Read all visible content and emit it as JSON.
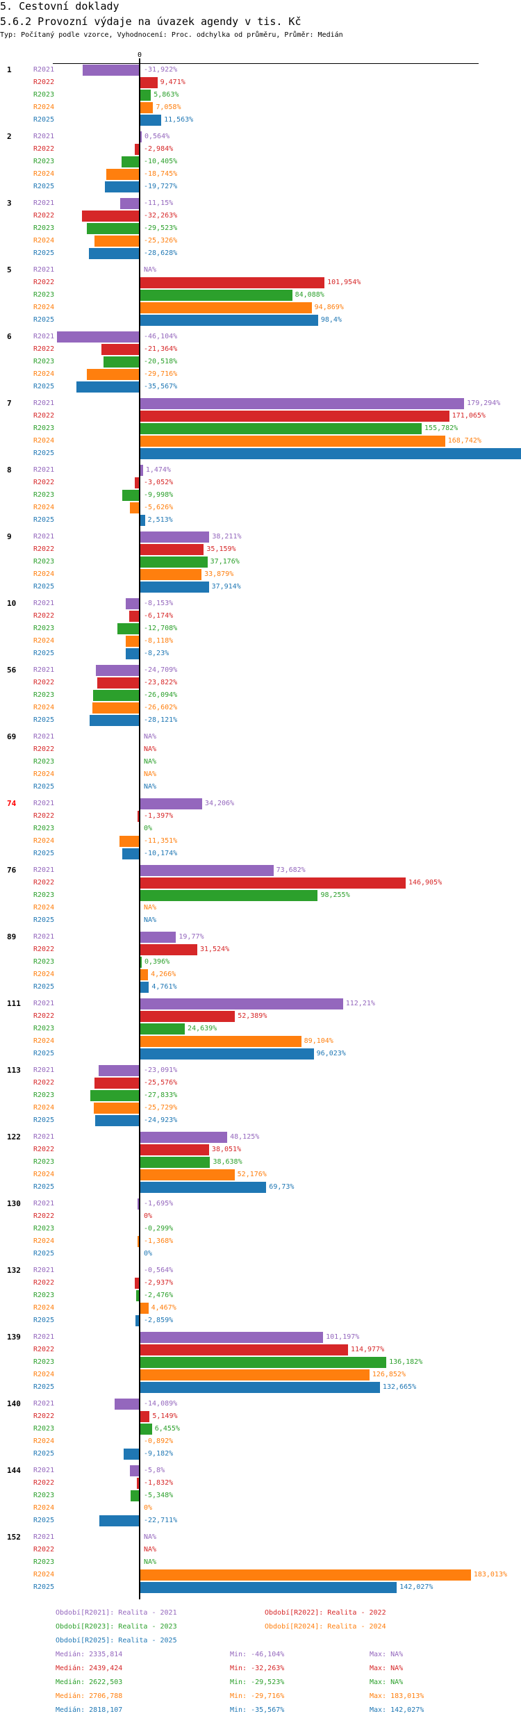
{
  "header": {
    "title": "5. Cestovní doklady",
    "subtitle": "5.6.2 Provozní výdaje na úvazek agendy v tis. Kč",
    "meta": "Typ: Počítaný podle vzorce, Vyhodnocení: Proc. odchylka od průměru, Průměr: Medián"
  },
  "chart_data": {
    "type": "bar",
    "orientation": "horizontal",
    "unit": "%",
    "zero_label": "0",
    "series": [
      {
        "key": "R2021",
        "color": "#9467bd"
      },
      {
        "key": "R2022",
        "color": "#d62728"
      },
      {
        "key": "R2023",
        "color": "#2ca02c"
      },
      {
        "key": "R2024",
        "color": "#ff7f0e"
      },
      {
        "key": "R2025",
        "color": "#1f77b4"
      }
    ],
    "groups": [
      {
        "name": "1",
        "values": [
          -31.922,
          9.471,
          5.863,
          7.058,
          11.563
        ],
        "labels": [
          "-31,922%",
          "9,471%",
          "5,863%",
          "7,058%",
          "11,563%"
        ]
      },
      {
        "name": "2",
        "values": [
          0.564,
          -2.984,
          -10.405,
          -18.745,
          -19.727
        ],
        "labels": [
          "0,564%",
          "-2,984%",
          "-10,405%",
          "-18,745%",
          "-19,727%"
        ]
      },
      {
        "name": "3",
        "values": [
          -11.15,
          -32.263,
          -29.523,
          -25.326,
          -28.628
        ],
        "labels": [
          "-11,15%",
          "-32,263%",
          "-29,523%",
          "-25,326%",
          "-28,628%"
        ]
      },
      {
        "name": "5",
        "values": [
          null,
          101.954,
          84.088,
          94.869,
          98.4
        ],
        "labels": [
          "NA%",
          "101,954%",
          "84,088%",
          "94,869%",
          "98,4%"
        ]
      },
      {
        "name": "6",
        "values": [
          -46.104,
          -21.364,
          -20.518,
          -29.716,
          -35.567
        ],
        "labels": [
          "-46,104%",
          "-21,364%",
          "-20,518%",
          "-29,716%",
          "-35,567%"
        ]
      },
      {
        "name": "7",
        "values": [
          179.294,
          171.065,
          155.782,
          168.742,
          null
        ],
        "labels": [
          "179,294%",
          "171,065%",
          "155,782%",
          "168,742%",
          ""
        ],
        "overflow": [
          false,
          false,
          false,
          false,
          true
        ]
      },
      {
        "name": "8",
        "values": [
          1.474,
          -3.052,
          -9.998,
          -5.626,
          2.513
        ],
        "labels": [
          "1,474%",
          "-3,052%",
          "-9,998%",
          "-5,626%",
          "2,513%"
        ]
      },
      {
        "name": "9",
        "values": [
          38.211,
          35.159,
          37.176,
          33.879,
          37.914
        ],
        "labels": [
          "38,211%",
          "35,159%",
          "37,176%",
          "33,879%",
          "37,914%"
        ]
      },
      {
        "name": "10",
        "values": [
          -8.153,
          -6.174,
          -12.708,
          -8.118,
          -8.23
        ],
        "labels": [
          "-8,153%",
          "-6,174%",
          "-12,708%",
          "-8,118%",
          "-8,23%"
        ]
      },
      {
        "name": "56",
        "values": [
          -24.709,
          -23.822,
          -26.094,
          -26.602,
          -28.121
        ],
        "labels": [
          "-24,709%",
          "-23,822%",
          "-26,094%",
          "-26,602%",
          "-28,121%"
        ]
      },
      {
        "name": "69",
        "values": [
          null,
          null,
          null,
          null,
          null
        ],
        "labels": [
          "NA%",
          "NA%",
          "NA%",
          "NA%",
          "NA%"
        ]
      },
      {
        "name": "74",
        "highlight": true,
        "values": [
          34.206,
          -1.397,
          0,
          -11.351,
          -10.174
        ],
        "labels": [
          "34,206%",
          "-1,397%",
          "0%",
          "-11,351%",
          "-10,174%"
        ]
      },
      {
        "name": "76",
        "values": [
          73.682,
          146.905,
          98.255,
          null,
          null
        ],
        "labels": [
          "73,682%",
          "146,905%",
          "98,255%",
          "NA%",
          "NA%"
        ]
      },
      {
        "name": "89",
        "values": [
          19.77,
          31.524,
          0.396,
          4.266,
          4.761
        ],
        "labels": [
          "19,77%",
          "31,524%",
          "0,396%",
          "4,266%",
          "4,761%"
        ]
      },
      {
        "name": "111",
        "values": [
          112.21,
          52.389,
          24.639,
          89.104,
          96.023
        ],
        "labels": [
          "112,21%",
          "52,389%",
          "24,639%",
          "89,104%",
          "96,023%"
        ]
      },
      {
        "name": "113",
        "values": [
          -23.091,
          -25.576,
          -27.833,
          -25.729,
          -24.923
        ],
        "labels": [
          "-23,091%",
          "-25,576%",
          "-27,833%",
          "-25,729%",
          "-24,923%"
        ]
      },
      {
        "name": "122",
        "values": [
          48.125,
          38.051,
          38.638,
          52.176,
          69.73
        ],
        "labels": [
          "48,125%",
          "38,051%",
          "38,638%",
          "52,176%",
          "69,73%"
        ]
      },
      {
        "name": "130",
        "values": [
          -1.695,
          0,
          -0.299,
          -1.368,
          0
        ],
        "labels": [
          "-1,695%",
          "0%",
          "-0,299%",
          "-1,368%",
          "0%"
        ]
      },
      {
        "name": "132",
        "values": [
          -0.564,
          -2.937,
          -2.476,
          4.467,
          -2.859
        ],
        "labels": [
          "-0,564%",
          "-2,937%",
          "-2,476%",
          "4,467%",
          "-2,859%"
        ]
      },
      {
        "name": "139",
        "values": [
          101.197,
          114.977,
          136.182,
          126.852,
          132.665
        ],
        "labels": [
          "101,197%",
          "114,977%",
          "136,182%",
          "126,852%",
          "132,665%"
        ]
      },
      {
        "name": "140",
        "values": [
          -14.089,
          5.149,
          6.455,
          -0.892,
          -9.182
        ],
        "labels": [
          "-14,089%",
          "5,149%",
          "6,455%",
          "-0,892%",
          "-9,182%"
        ]
      },
      {
        "name": "144",
        "values": [
          -5.8,
          -1.832,
          -5.348,
          0,
          -22.711
        ],
        "labels": [
          "-5,8%",
          "-1,832%",
          "-5,348%",
          "0%",
          "-22,711%"
        ]
      },
      {
        "name": "152",
        "values": [
          null,
          null,
          null,
          183.013,
          142.027
        ],
        "labels": [
          "NA%",
          "NA%",
          "NA%",
          "183,013%",
          "142,027%"
        ]
      }
    ],
    "legend": [
      "Období[R2021]: Realita - 2021",
      "Období[R2022]: Realita - 2022",
      "Období[R2023]: Realita - 2023",
      "Období[R2024]: Realita - 2024",
      "Období[R2025]: Realita - 2025"
    ],
    "stats": [
      {
        "median": "Medián: 2335,814",
        "min": "Min: -46,104%",
        "max": "Max: NA%"
      },
      {
        "median": "Medián: 2439,424",
        "min": "Min: -32,263%",
        "max": "Max: NA%"
      },
      {
        "median": "Medián: 2622,503",
        "min": "Min: -29,523%",
        "max": "Max: NA%"
      },
      {
        "median": "Medián: 2706,788",
        "min": "Min: -29,716%",
        "max": "Max: 183,013%"
      },
      {
        "median": "Medián: 2818,107",
        "min": "Min: -35,567%",
        "max": "Max: 142,027%"
      }
    ]
  }
}
